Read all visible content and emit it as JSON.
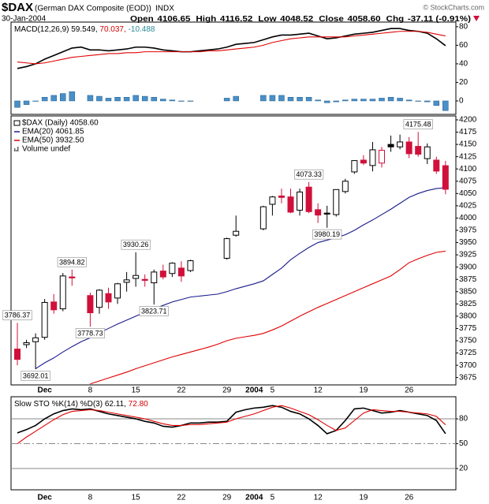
{
  "header": {
    "symbol": "$DAX",
    "description": "(German DAX Composite (EOD))",
    "exchange": "INDX",
    "date": "30-Jan-2004",
    "quote": [
      [
        "Open",
        "4106.65"
      ],
      [
        "High",
        "4116.52"
      ],
      [
        "Low",
        "4048.52"
      ],
      [
        "Close",
        "4058.60"
      ],
      [
        "Chg",
        "-37.11 (-0.91%)"
      ]
    ],
    "watermark": "© StockCharts.com"
  },
  "chart_data": [
    {
      "type": "macd",
      "label_parts": [
        {
          "text": "MACD(12,26,9) 59.549,",
          "color": "#000000"
        },
        {
          "text": " 70.037,",
          "color": "#d00000"
        },
        {
          "text": " -10.488",
          "color": "#2a8a9a"
        }
      ],
      "categories": [
        null,
        null,
        null,
        "Dec",
        null,
        null,
        null,
        null,
        "8",
        null,
        null,
        null,
        null,
        "15",
        null,
        null,
        null,
        null,
        "22",
        null,
        null,
        null,
        null,
        "29",
        null,
        null,
        "2004",
        null,
        "5",
        null,
        null,
        null,
        null,
        "12",
        null,
        null,
        null,
        null,
        "19",
        null,
        null,
        null,
        null,
        "26",
        null,
        null,
        null,
        null
      ],
      "ylim": [
        -14.5,
        85
      ],
      "yticks": [
        0,
        20,
        40,
        60,
        80
      ],
      "series": [
        {
          "name": "MACD",
          "color": "#000000",
          "values": [
            35,
            37,
            40,
            45,
            49,
            53,
            57,
            58,
            55,
            55,
            54,
            55,
            56,
            58,
            58,
            57,
            55,
            54,
            53,
            53,
            54,
            55,
            56,
            58,
            61,
            62,
            63,
            66,
            69,
            71,
            71,
            72,
            73,
            70,
            67,
            68,
            70,
            72,
            73,
            74,
            76,
            78,
            78,
            76,
            75,
            73,
            67,
            59.549
          ]
        },
        {
          "name": "Signal",
          "color": "#e00000",
          "values": [
            42,
            41,
            40,
            41,
            43,
            45,
            47,
            48,
            49,
            50,
            51,
            51,
            52,
            52,
            53,
            53,
            53,
            53,
            53,
            53,
            53,
            54,
            54,
            55,
            56,
            57,
            58,
            60,
            63,
            65,
            67,
            68,
            69,
            69,
            69,
            69,
            69,
            70,
            71,
            72,
            73,
            74,
            75,
            75,
            75,
            74,
            72,
            70.037
          ]
        }
      ],
      "histogram": {
        "name": "Histogram",
        "color": "#4a8fc8",
        "values": [
          -7,
          -4,
          0,
          4,
          6,
          8,
          10,
          null,
          6,
          5,
          3,
          4,
          4,
          6,
          5,
          4,
          2,
          1,
          0,
          0,
          null,
          null,
          null,
          3,
          5,
          null,
          null,
          6,
          6,
          6,
          4,
          4,
          4,
          1,
          -2,
          -1,
          1,
          2,
          2,
          2,
          3,
          4,
          3,
          1,
          0,
          -1,
          -5,
          -10.488
        ]
      }
    },
    {
      "type": "candlestick",
      "show_x_labels": true,
      "categories": [
        null,
        null,
        null,
        "Dec",
        null,
        null,
        null,
        null,
        "8",
        null,
        null,
        null,
        null,
        "15",
        null,
        null,
        null,
        null,
        "22",
        null,
        null,
        null,
        null,
        "29",
        null,
        null,
        "2004",
        null,
        "5",
        null,
        null,
        null,
        null,
        "12",
        null,
        null,
        null,
        null,
        "19",
        null,
        null,
        null,
        null,
        "26",
        null,
        null,
        null,
        null
      ],
      "ylim": [
        3660,
        4208
      ],
      "yticks": [
        4200,
        4175,
        4150,
        4125,
        4100,
        4075,
        4050,
        4025,
        4000,
        3975,
        3950,
        3925,
        3900,
        3875,
        3850,
        3825,
        3800,
        3775,
        3750,
        3725,
        3700,
        3675
      ],
      "name": "$DAX (Daily) 4058.60",
      "up_color": "#000000",
      "down_color": "#d0103a",
      "open": [
        3733,
        3742,
        3748,
        3757,
        3829,
        3815,
        3880,
        null,
        3842,
        3818,
        3846,
        3837,
        3869,
        3877,
        3875,
        3868,
        3892,
        3887,
        3898,
        3893,
        null,
        null,
        null,
        3918,
        3965,
        null,
        null,
        3978,
        4028,
        4045,
        4043,
        4016,
        4063,
        4017,
        4010,
        4007,
        4054,
        4094,
        4118,
        4107,
        4112,
        4150,
        4145,
        4155,
        4146,
        4121,
        4118,
        4106.65
      ],
      "high": [
        3786.37,
        3752,
        3765,
        3835,
        3845,
        3888,
        3894.82,
        null,
        3848,
        3855,
        3858,
        3868,
        3890,
        3930.26,
        3885,
        3895,
        3905,
        3910,
        3912,
        3915,
        null,
        null,
        null,
        3960,
        4005,
        null,
        null,
        4025,
        4045,
        4060,
        4060,
        4060,
        4073.33,
        4030,
        4025,
        4058,
        4080,
        4118,
        4128,
        4155,
        4145,
        4168,
        4170,
        4165,
        4175.48,
        4152,
        4125,
        4116.52
      ],
      "low": [
        3700,
        3735,
        3692.01,
        3752,
        3805,
        3810,
        3862,
        null,
        3778.73,
        3805,
        3815,
        3825,
        3850,
        3860,
        3860,
        3823.71,
        3875,
        3880,
        3870,
        3890,
        null,
        null,
        null,
        3915,
        3962,
        null,
        null,
        3975,
        4005,
        4030,
        4010,
        4005,
        4010,
        3990,
        3980.19,
        4003,
        4050,
        4090,
        4108,
        4095,
        4103,
        4135,
        4140,
        4122,
        4125,
        4110,
        4090,
        4048.52
      ],
      "close": [
        3712,
        3746,
        3756,
        3828,
        3813,
        3882,
        3878,
        null,
        3807,
        3853,
        3829,
        3866,
        3874,
        3883,
        3873,
        3890,
        3880,
        3908,
        3882,
        3913,
        null,
        null,
        null,
        3958,
        3973,
        null,
        null,
        4023,
        4043,
        4042,
        4012,
        4053,
        4013,
        4006,
        4008,
        4058,
        4075,
        4117,
        4112,
        4139,
        4138,
        4145,
        4155,
        4131,
        4130,
        4145,
        4095.71,
        4058.6
      ],
      "labeled_highs": [
        0,
        6,
        13,
        32,
        44
      ],
      "labeled_lows": [
        2,
        8,
        15,
        34
      ],
      "series": [
        {
          "name": "EMA(20) 4061.85",
          "color": "#1a1a8c",
          "values": [
            null,
            null,
            3693,
            3705,
            3715,
            3727,
            3738,
            3748,
            3756,
            3766,
            3775,
            3784,
            3792,
            3800,
            3808,
            3815,
            3822,
            3829,
            3834,
            3839,
            3841,
            3843,
            3845,
            3850,
            3856,
            3861,
            3866,
            3872,
            3885,
            3898,
            3915,
            3928,
            3940,
            3950,
            3955,
            3960,
            3966,
            3975,
            3986,
            3996,
            4007,
            4018,
            4030,
            4042,
            4050,
            4056,
            4060,
            4061.85
          ]
        },
        {
          "name": "EMA(50) 3932.50",
          "color": "#e00000",
          "values": [
            null,
            null,
            null,
            null,
            null,
            null,
            null,
            null,
            3662,
            3668,
            3674,
            3680,
            3686,
            3693,
            3699,
            3705,
            3711,
            3717,
            3722,
            3727,
            3732,
            3737,
            3743,
            3750,
            3755,
            3758,
            3761,
            3765,
            3772,
            3780,
            3790,
            3800,
            3809,
            3818,
            3826,
            3834,
            3842,
            3850,
            3858,
            3866,
            3874,
            3882,
            3895,
            3909,
            3917,
            3924,
            3930,
            3932.5
          ]
        }
      ],
      "volume_legend": "Volume undef"
    },
    {
      "type": "stochastic",
      "show_x_labels": true,
      "grid": true,
      "label_parts": [
        {
          "text": "Slow STO %K(14) %D(3) 62.11,",
          "color": "#000000"
        },
        {
          "text": " 72.80",
          "color": "#d00000"
        }
      ],
      "categories": [
        null,
        null,
        null,
        "Dec",
        null,
        null,
        null,
        null,
        "8",
        null,
        null,
        null,
        null,
        "15",
        null,
        null,
        null,
        null,
        "22",
        null,
        null,
        null,
        null,
        "29",
        null,
        null,
        "2004",
        null,
        "5",
        null,
        null,
        null,
        null,
        "12",
        null,
        null,
        null,
        null,
        "19",
        null,
        null,
        null,
        null,
        "26",
        null,
        null,
        null,
        null
      ],
      "ylim": [
        -5.7,
        106.7
      ],
      "yticks": [
        20,
        50,
        80
      ],
      "series": [
        {
          "name": "%K",
          "color": "#000000",
          "values": [
            63,
            67,
            72,
            80,
            86,
            90,
            92,
            91,
            92,
            89,
            86,
            84,
            82,
            80,
            77,
            75,
            71,
            70,
            72,
            75,
            75,
            76,
            76,
            77,
            88,
            91,
            93,
            94,
            96,
            94,
            89,
            86,
            80,
            72,
            62,
            66,
            78,
            92,
            93,
            90,
            87,
            88,
            90,
            88,
            86,
            84,
            78,
            62.11
          ]
        },
        {
          "name": "%D",
          "color": "#e00000",
          "values": [
            50,
            58,
            65,
            72,
            79,
            85,
            89,
            90,
            91,
            90,
            88,
            86,
            84,
            82,
            80,
            77,
            74,
            72,
            72,
            73,
            73,
            74,
            75,
            76,
            80,
            83,
            86,
            90,
            94,
            96,
            93,
            89,
            85,
            79,
            72,
            66,
            69,
            78,
            87,
            91,
            90,
            89,
            89,
            88,
            87,
            86,
            83,
            72.8
          ]
        }
      ]
    }
  ]
}
